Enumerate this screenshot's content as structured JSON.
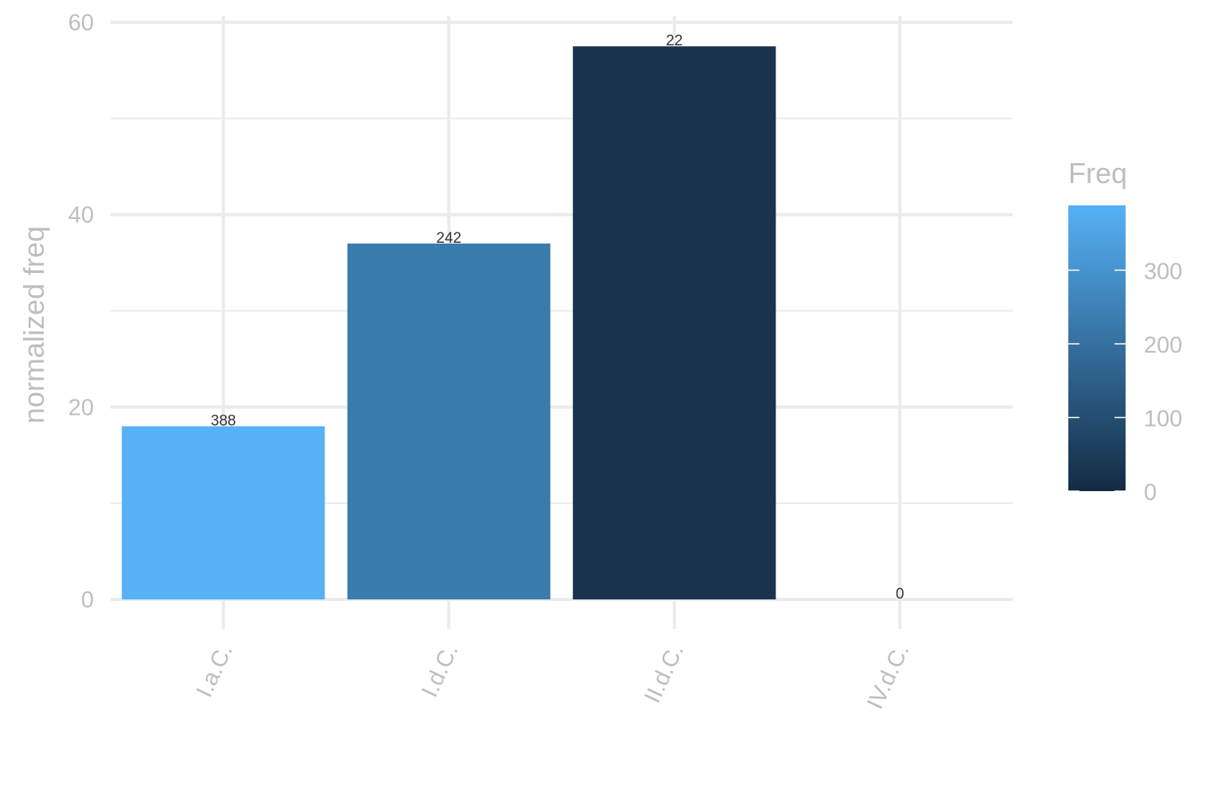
{
  "chart_data": {
    "type": "bar",
    "categories": [
      "I.a.C.",
      "I.d.C.",
      "II.d.C.",
      "IV.d.C."
    ],
    "values": [
      18.0,
      37.0,
      57.5,
      0
    ],
    "data_labels": [
      "388",
      "242",
      "22",
      "0"
    ],
    "freq": [
      388,
      242,
      22,
      0
    ],
    "bar_colors": [
      "#56b1f7",
      "#3a7bad",
      "#19334f",
      "#132b43"
    ],
    "xlabel": "",
    "ylabel": "normalized freq",
    "ylim": [
      0,
      60
    ],
    "yticks": [
      0,
      20,
      40,
      60
    ],
    "grid": true,
    "legend": {
      "title": "Freq",
      "placement": "right",
      "type": "colorbar",
      "range": [
        0,
        388
      ],
      "ticks": [
        0,
        100,
        200,
        300
      ],
      "tick_labels": [
        "0",
        "100",
        "200",
        "300"
      ],
      "low_color": "#132b43",
      "high_color": "#56b1f7"
    }
  }
}
